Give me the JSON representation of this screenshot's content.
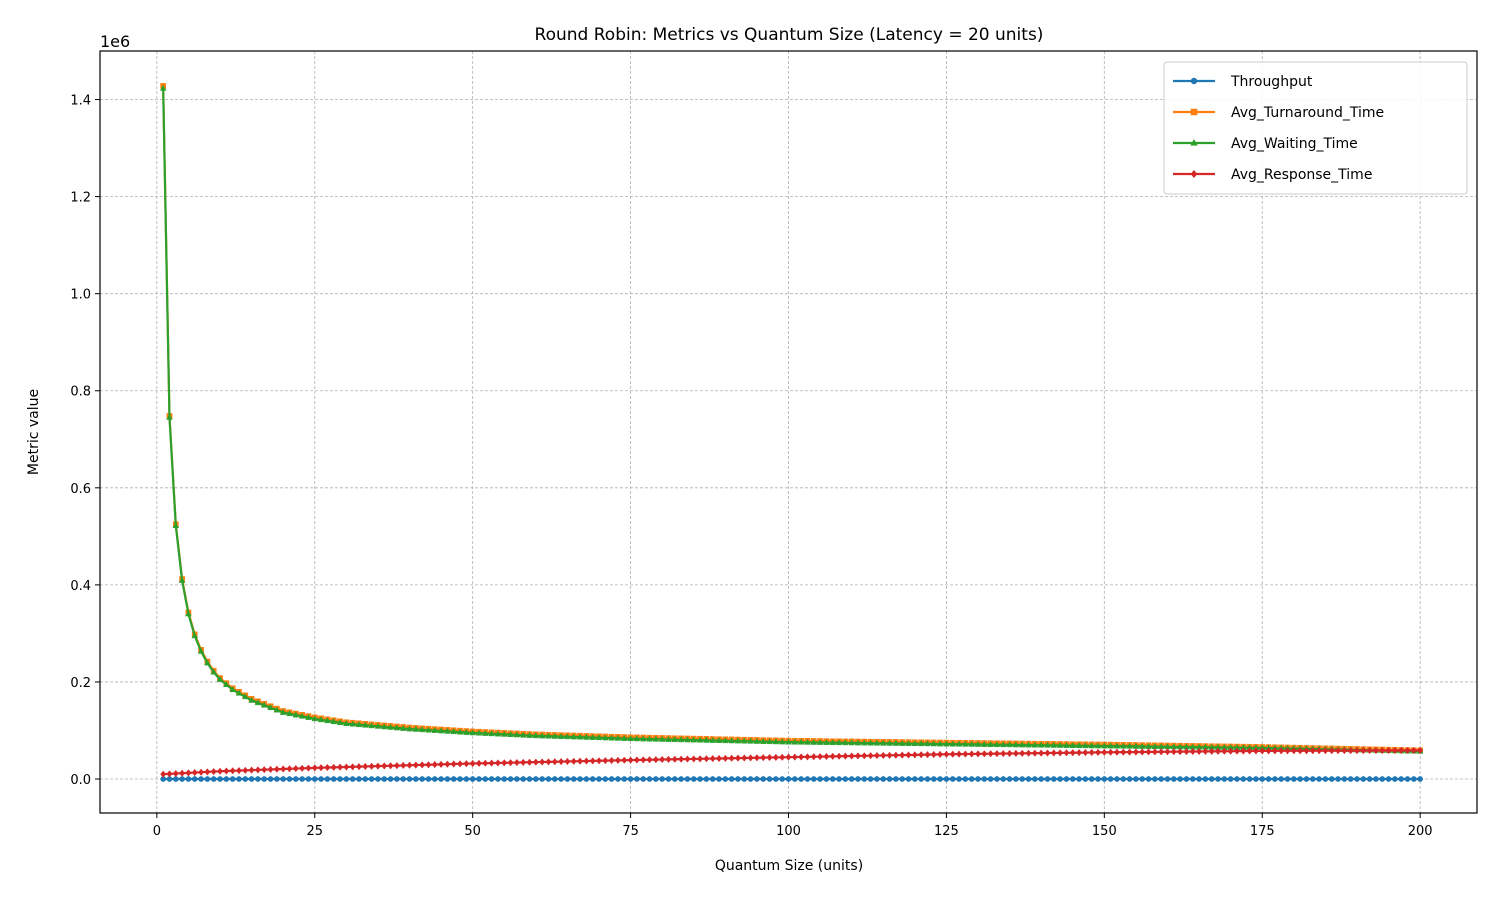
{
  "chart_data": {
    "type": "line",
    "title": "Round Robin: Metrics vs Quantum Size (Latency = 20 units)",
    "xlabel": "Quantum Size (units)",
    "ylabel": "Metric value",
    "y_offset_label": "1e6",
    "xlim": [
      -9,
      209
    ],
    "ylim": [
      -70000,
      1500000
    ],
    "x_ticks": [
      0,
      25,
      50,
      75,
      100,
      125,
      150,
      175,
      200
    ],
    "x_tick_labels": [
      "0",
      "25",
      "50",
      "75",
      "100",
      "125",
      "150",
      "175",
      "200"
    ],
    "y_ticks": [
      0,
      200000,
      400000,
      600000,
      800000,
      1000000,
      1200000,
      1400000
    ],
    "y_tick_labels": [
      "0.0",
      "0.2",
      "0.4",
      "0.6",
      "0.8",
      "1.0",
      "1.2",
      "1.4"
    ],
    "grid": true,
    "legend_position": "top-right",
    "x_range": {
      "start": 1,
      "end": 200,
      "step": 1
    },
    "series": [
      {
        "name": "Throughput",
        "color": "#1f77b4",
        "marker": "circle",
        "points": [
          [
            1,
            0
          ],
          [
            200,
            0
          ]
        ]
      },
      {
        "name": "Avg_Turnaround_Time",
        "color": "#ff7f0e",
        "marker": "square",
        "points": [
          [
            1,
            1428000
          ],
          [
            2,
            748000
          ],
          [
            3,
            525000
          ],
          [
            4,
            412000
          ],
          [
            5,
            343000
          ],
          [
            6,
            298000
          ],
          [
            7,
            266000
          ],
          [
            8,
            242000
          ],
          [
            9,
            223000
          ],
          [
            10,
            208000
          ],
          [
            12,
            187000
          ],
          [
            15,
            165000
          ],
          [
            20,
            140000
          ],
          [
            25,
            127000
          ],
          [
            30,
            117000
          ],
          [
            40,
            106000
          ],
          [
            50,
            98000
          ],
          [
            60,
            92000
          ],
          [
            75,
            86000
          ],
          [
            100,
            79000
          ],
          [
            125,
            75000
          ],
          [
            150,
            71000
          ],
          [
            175,
            66000
          ],
          [
            200,
            59000
          ]
        ]
      },
      {
        "name": "Avg_Waiting_Time",
        "color": "#2ca02c",
        "marker": "triangle",
        "points": [
          [
            1,
            1423000
          ],
          [
            2,
            745000
          ],
          [
            3,
            522000
          ],
          [
            4,
            409000
          ],
          [
            5,
            340000
          ],
          [
            6,
            295000
          ],
          [
            7,
            263000
          ],
          [
            8,
            239000
          ],
          [
            9,
            220000
          ],
          [
            10,
            205000
          ],
          [
            12,
            184000
          ],
          [
            15,
            162000
          ],
          [
            20,
            137000
          ],
          [
            25,
            124000
          ],
          [
            30,
            114000
          ],
          [
            40,
            103000
          ],
          [
            50,
            95000
          ],
          [
            60,
            89000
          ],
          [
            75,
            83000
          ],
          [
            100,
            76000
          ],
          [
            125,
            72000
          ],
          [
            150,
            68000
          ],
          [
            175,
            64000
          ],
          [
            200,
            57000
          ]
        ]
      },
      {
        "name": "Avg_Response_Time",
        "color": "#d62728",
        "marker": "diamond",
        "points": [
          [
            1,
            10000
          ],
          [
            10,
            16000
          ],
          [
            25,
            23000
          ],
          [
            50,
            32000
          ],
          [
            75,
            39000
          ],
          [
            100,
            45000
          ],
          [
            125,
            51000
          ],
          [
            150,
            55000
          ],
          [
            175,
            58000
          ],
          [
            200,
            59000
          ]
        ]
      }
    ]
  }
}
